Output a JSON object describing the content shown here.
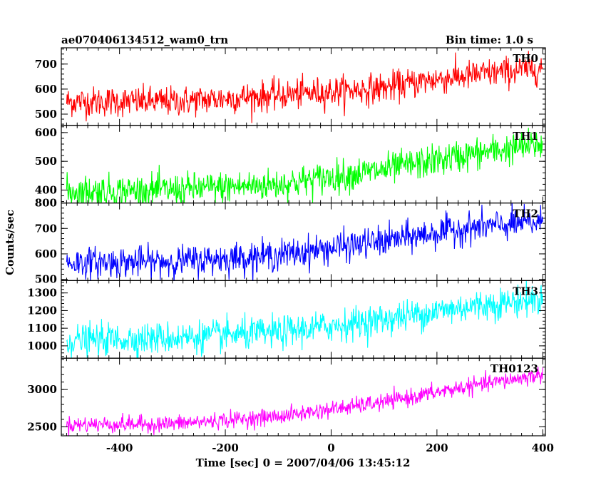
{
  "chart_data": {
    "type": "line",
    "title": "ae070406134512_wam0_trn",
    "bin_time_label": "Bin time: 1.0 s",
    "xlabel": "Time [sec] 0 = 2007/04/06 13:45:12",
    "ylabel": "Counts/sec",
    "xlim": [
      -510,
      405
    ],
    "xticks": [
      -400,
      -200,
      0,
      200,
      400
    ],
    "x_start": -500,
    "x_end": 400,
    "grid": false,
    "panels": [
      {
        "name": "TH0",
        "color": "#ff0000",
        "ylim": [
          455,
          765
        ],
        "yticks": [
          500,
          600,
          700
        ],
        "trend": [
          [
            -500,
            550
          ],
          [
            -300,
            550
          ],
          [
            -100,
            575
          ],
          [
            100,
            605
          ],
          [
            200,
            640
          ],
          [
            400,
            685
          ]
        ],
        "noise": 30
      },
      {
        "name": "TH1",
        "color": "#00ff00",
        "ylim": [
          355,
          625
        ],
        "yticks": [
          400,
          500,
          600
        ],
        "trend": [
          [
            -500,
            395
          ],
          [
            -300,
            400
          ],
          [
            -100,
            420
          ],
          [
            100,
            470
          ],
          [
            250,
            520
          ],
          [
            400,
            560
          ]
        ],
        "noise": 28
      },
      {
        "name": "TH2",
        "color": "#0000ff",
        "ylim": [
          495,
          800
        ],
        "yticks": [
          500,
          600,
          700,
          800
        ],
        "trend": [
          [
            -500,
            565
          ],
          [
            -300,
            570
          ],
          [
            -100,
            595
          ],
          [
            100,
            650
          ],
          [
            250,
            700
          ],
          [
            400,
            725
          ]
        ],
        "noise": 30
      },
      {
        "name": "TH3",
        "color": "#00ffff",
        "ylim": [
          930,
          1370
        ],
        "yticks": [
          1000,
          1100,
          1200,
          1300
        ],
        "trend": [
          [
            -500,
            1030
          ],
          [
            -300,
            1045
          ],
          [
            -100,
            1075
          ],
          [
            100,
            1150
          ],
          [
            250,
            1220
          ],
          [
            400,
            1265
          ]
        ],
        "noise": 45
      },
      {
        "name": "TH0123",
        "color": "#ff00ff",
        "ylim": [
          2380,
          3420
        ],
        "yticks": [
          2500,
          3000
        ],
        "trend": [
          [
            -500,
            2530
          ],
          [
            -300,
            2540
          ],
          [
            -100,
            2640
          ],
          [
            100,
            2830
          ],
          [
            250,
            3030
          ],
          [
            400,
            3200
          ]
        ],
        "noise": 55
      }
    ]
  }
}
